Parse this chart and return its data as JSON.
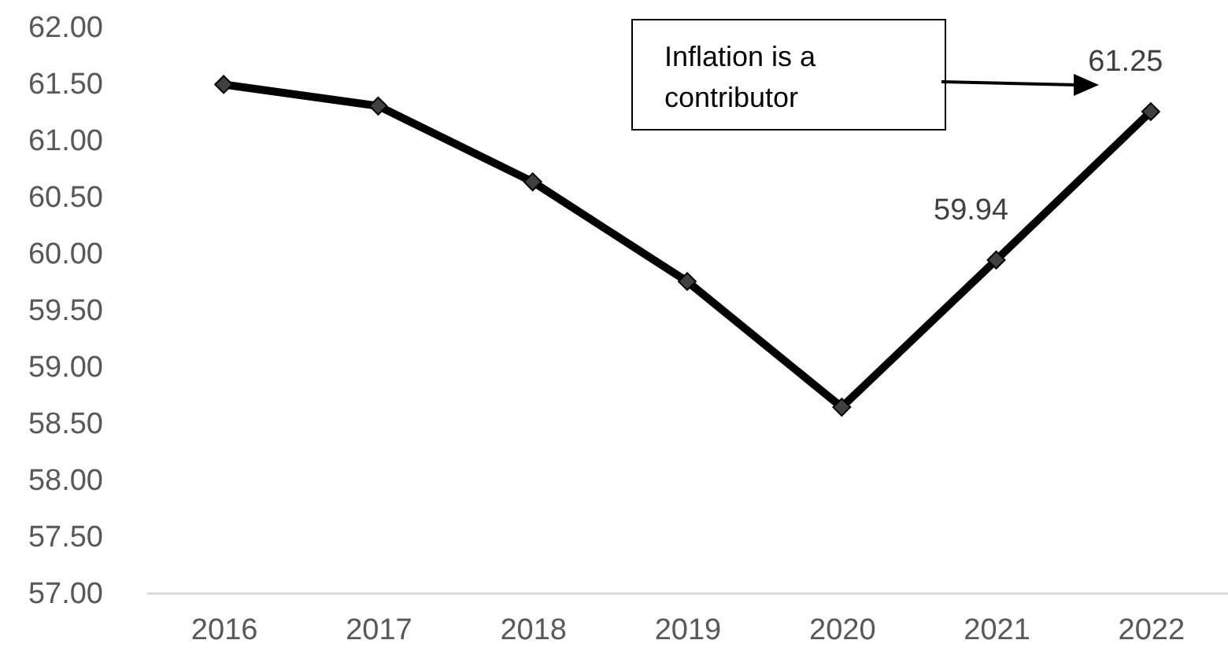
{
  "chart_data": {
    "type": "line",
    "categories": [
      "2016",
      "2017",
      "2018",
      "2019",
      "2020",
      "2021",
      "2022"
    ],
    "series": [
      {
        "color": "#000000",
        "values": [
          61.49,
          61.3,
          60.63,
          59.75,
          58.64,
          59.94,
          61.25
        ],
        "value_labels": [
          null,
          null,
          null,
          null,
          null,
          "59.94",
          "61.25"
        ]
      }
    ],
    "ylim": [
      57,
      62
    ],
    "yticks": [
      {
        "value": 57,
        "label": "57.00"
      },
      {
        "value": 57.5,
        "label": "57.50"
      },
      {
        "value": 58,
        "label": "58.00"
      },
      {
        "value": 58.5,
        "label": "58.50"
      },
      {
        "value": 59,
        "label": "59.00"
      },
      {
        "value": 59.5,
        "label": "59.50"
      },
      {
        "value": 60,
        "label": "60.00"
      },
      {
        "value": 60.5,
        "label": "60.50"
      },
      {
        "value": 61,
        "label": "61.00"
      },
      {
        "value": 61.5,
        "label": "61.50"
      },
      {
        "value": 62,
        "label": "62.00"
      }
    ],
    "marker": "diamond",
    "line_style": "solid",
    "grid": false,
    "annotations": [
      "Inflation is a\ncontributor"
    ]
  }
}
